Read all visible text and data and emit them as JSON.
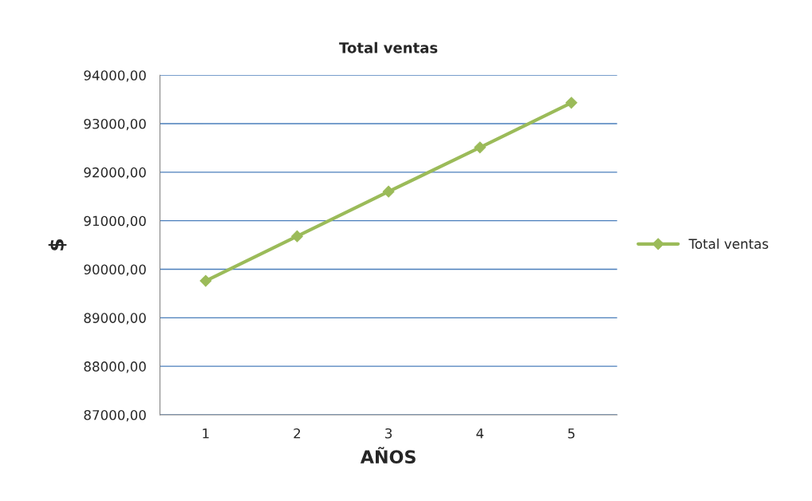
{
  "chart_data": {
    "type": "line",
    "title": "Total ventas",
    "xlabel": "AÑOS",
    "ylabel": "$",
    "categories": [
      "1",
      "2",
      "3",
      "4",
      "5"
    ],
    "series": [
      {
        "name": "Total ventas",
        "color": "#9bbb59",
        "values": [
          89760,
          90680,
          91600,
          92510,
          93430
        ]
      }
    ],
    "ylim": [
      87000,
      94000
    ],
    "yticks": [
      {
        "value": 87000,
        "label": "87000,00"
      },
      {
        "value": 88000,
        "label": "88000,00"
      },
      {
        "value": 89000,
        "label": "89000,00"
      },
      {
        "value": 90000,
        "label": "90000,00"
      },
      {
        "value": 91000,
        "label": "91000,00"
      },
      {
        "value": 92000,
        "label": "92000,00"
      },
      {
        "value": 93000,
        "label": "93000,00"
      },
      {
        "value": 94000,
        "label": "94000,00"
      }
    ],
    "grid": "y",
    "legend": "right",
    "marker": "diamond",
    "line_style": "solid"
  }
}
